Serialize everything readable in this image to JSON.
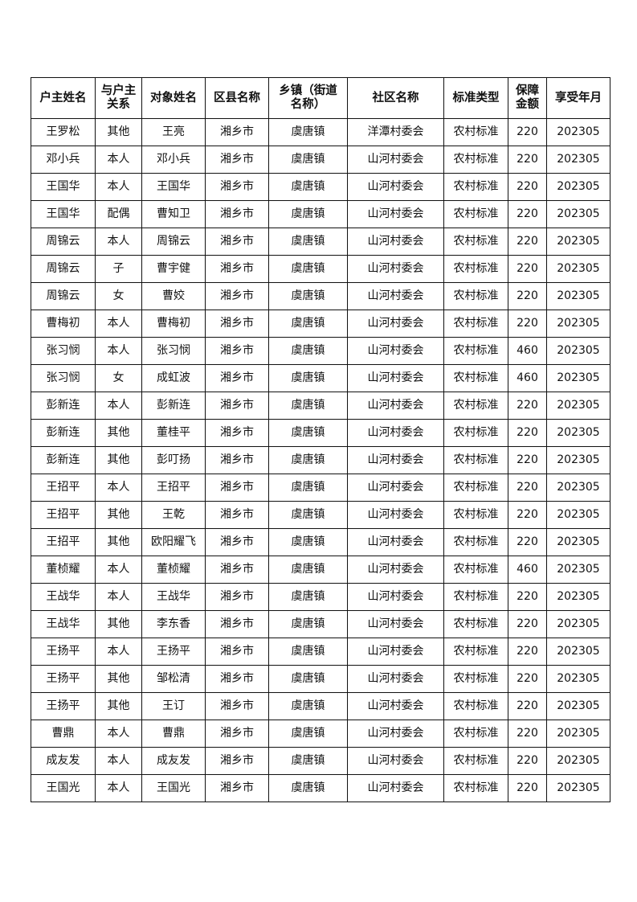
{
  "table": {
    "headers": [
      "户主姓名",
      "与户主关系",
      "对象姓名",
      "区县名称",
      "乡镇（街道名称）",
      "社区名称",
      "标准类型",
      "保障金额",
      "享受年月"
    ],
    "rows": [
      [
        "王罗松",
        "其他",
        "王亮",
        "湘乡市",
        "虞唐镇",
        "洋潭村委会",
        "农村标准",
        "220",
        "202305"
      ],
      [
        "邓小兵",
        "本人",
        "邓小兵",
        "湘乡市",
        "虞唐镇",
        "山河村委会",
        "农村标准",
        "220",
        "202305"
      ],
      [
        "王国华",
        "本人",
        "王国华",
        "湘乡市",
        "虞唐镇",
        "山河村委会",
        "农村标准",
        "220",
        "202305"
      ],
      [
        "王国华",
        "配偶",
        "曹知卫",
        "湘乡市",
        "虞唐镇",
        "山河村委会",
        "农村标准",
        "220",
        "202305"
      ],
      [
        "周锦云",
        "本人",
        "周锦云",
        "湘乡市",
        "虞唐镇",
        "山河村委会",
        "农村标准",
        "220",
        "202305"
      ],
      [
        "周锦云",
        "子",
        "曹宇健",
        "湘乡市",
        "虞唐镇",
        "山河村委会",
        "农村标准",
        "220",
        "202305"
      ],
      [
        "周锦云",
        "女",
        "曹姣",
        "湘乡市",
        "虞唐镇",
        "山河村委会",
        "农村标准",
        "220",
        "202305"
      ],
      [
        "曹梅初",
        "本人",
        "曹梅初",
        "湘乡市",
        "虞唐镇",
        "山河村委会",
        "农村标准",
        "220",
        "202305"
      ],
      [
        "张习悯",
        "本人",
        "张习悯",
        "湘乡市",
        "虞唐镇",
        "山河村委会",
        "农村标准",
        "460",
        "202305"
      ],
      [
        "张习悯",
        "女",
        "成虹波",
        "湘乡市",
        "虞唐镇",
        "山河村委会",
        "农村标准",
        "460",
        "202305"
      ],
      [
        "彭新连",
        "本人",
        "彭新连",
        "湘乡市",
        "虞唐镇",
        "山河村委会",
        "农村标准",
        "220",
        "202305"
      ],
      [
        "彭新连",
        "其他",
        "董桂平",
        "湘乡市",
        "虞唐镇",
        "山河村委会",
        "农村标准",
        "220",
        "202305"
      ],
      [
        "彭新连",
        "其他",
        "彭叮扬",
        "湘乡市",
        "虞唐镇",
        "山河村委会",
        "农村标准",
        "220",
        "202305"
      ],
      [
        "王招平",
        "本人",
        "王招平",
        "湘乡市",
        "虞唐镇",
        "山河村委会",
        "农村标准",
        "220",
        "202305"
      ],
      [
        "王招平",
        "其他",
        "王乾",
        "湘乡市",
        "虞唐镇",
        "山河村委会",
        "农村标准",
        "220",
        "202305"
      ],
      [
        "王招平",
        "其他",
        "欧阳耀飞",
        "湘乡市",
        "虞唐镇",
        "山河村委会",
        "农村标准",
        "220",
        "202305"
      ],
      [
        "董桢耀",
        "本人",
        "董桢耀",
        "湘乡市",
        "虞唐镇",
        "山河村委会",
        "农村标准",
        "460",
        "202305"
      ],
      [
        "王战华",
        "本人",
        "王战华",
        "湘乡市",
        "虞唐镇",
        "山河村委会",
        "农村标准",
        "220",
        "202305"
      ],
      [
        "王战华",
        "其他",
        "李东香",
        "湘乡市",
        "虞唐镇",
        "山河村委会",
        "农村标准",
        "220",
        "202305"
      ],
      [
        "王扬平",
        "本人",
        "王扬平",
        "湘乡市",
        "虞唐镇",
        "山河村委会",
        "农村标准",
        "220",
        "202305"
      ],
      [
        "王扬平",
        "其他",
        "邹松清",
        "湘乡市",
        "虞唐镇",
        "山河村委会",
        "农村标准",
        "220",
        "202305"
      ],
      [
        "王扬平",
        "其他",
        "王订",
        "湘乡市",
        "虞唐镇",
        "山河村委会",
        "农村标准",
        "220",
        "202305"
      ],
      [
        "曹鼎",
        "本人",
        "曹鼎",
        "湘乡市",
        "虞唐镇",
        "山河村委会",
        "农村标准",
        "220",
        "202305"
      ],
      [
        "成友发",
        "本人",
        "成友发",
        "湘乡市",
        "虞唐镇",
        "山河村委会",
        "农村标准",
        "220",
        "202305"
      ],
      [
        "王国光",
        "本人",
        "王国光",
        "湘乡市",
        "虞唐镇",
        "山河村委会",
        "农村标准",
        "220",
        "202305"
      ]
    ]
  }
}
